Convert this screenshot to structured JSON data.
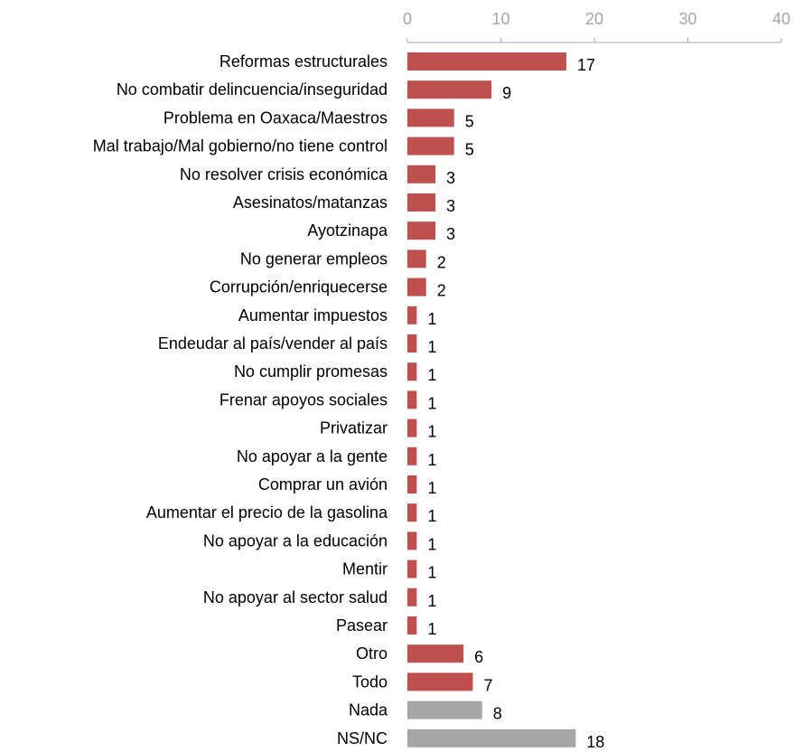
{
  "chart_data": {
    "type": "bar",
    "orientation": "horizontal",
    "title": "",
    "xlabel": "",
    "ylabel": "",
    "xlim": [
      0,
      40
    ],
    "xticks": [
      0,
      10,
      20,
      30,
      40
    ],
    "xaxis_position": "top",
    "grid": false,
    "legend": "none",
    "colors": {
      "primary": "#c0504d",
      "secondary": "#a6a6a6",
      "axis": "#a6a6a6"
    },
    "categories": [
      "Reformas estructurales",
      "No combatir delincuencia/inseguridad",
      "Problema en Oaxaca/Maestros",
      "Mal trabajo/Mal gobierno/no tiene control",
      "No resolver crisis económica",
      "Asesinatos/matanzas",
      "Ayotzinapa",
      "No generar empleos",
      "Corrupción/enriquecerse",
      "Aumentar impuestos",
      "Endeudar al país/vender al país",
      "No cumplir promesas",
      "Frenar apoyos sociales",
      "Privatizar",
      "No apoyar a la gente",
      "Comprar un avión",
      "Aumentar el precio de la gasolina",
      "No apoyar a la educación",
      "Mentir",
      "No apoyar al sector salud",
      "Pasear",
      "Otro",
      "Todo",
      "Nada",
      "NS/NC"
    ],
    "values": [
      17,
      9,
      5,
      5,
      3,
      3,
      3,
      2,
      2,
      1,
      1,
      1,
      1,
      1,
      1,
      1,
      1,
      1,
      1,
      1,
      1,
      6,
      7,
      8,
      18
    ],
    "bar_color_group": [
      "primary",
      "primary",
      "primary",
      "primary",
      "primary",
      "primary",
      "primary",
      "primary",
      "primary",
      "primary",
      "primary",
      "primary",
      "primary",
      "primary",
      "primary",
      "primary",
      "primary",
      "primary",
      "primary",
      "primary",
      "primary",
      "primary",
      "primary",
      "secondary",
      "secondary"
    ]
  }
}
